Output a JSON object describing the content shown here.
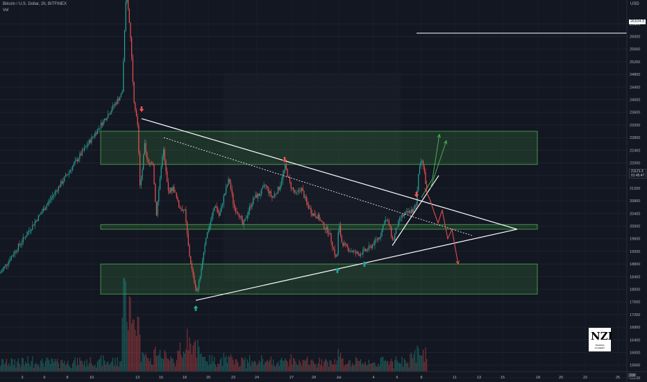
{
  "header": {
    "symbol_line": "Bitcoin / U.S. Dollar, 2h, BITFINEX",
    "volume_label": "Vol",
    "currency": "USD",
    "timezone_badge": "208"
  },
  "badges": {
    "hline_value": "26104.3",
    "price_value": "21121.3",
    "countdown": "01:45:47"
  },
  "logo": {
    "mark": "NZI",
    "caption": "TRADING ACADEMY"
  },
  "colors": {
    "background": "#131722",
    "zone_fill": "rgba(76,175,80,0.18)",
    "zone_border": "#4caf50",
    "up": "#26a69a",
    "down": "#ef5350",
    "vol_up": "rgba(38,166,154,0.45)",
    "vol_down": "rgba(239,83,80,0.45)",
    "trendline": "#ffffff",
    "up_arrow": "#26a69a",
    "down_arrow": "#ef5350",
    "projection_bull": "#4caf50",
    "projection_bear": "#ef5350"
  },
  "chart_data": {
    "type": "candlestick",
    "y_axis": {
      "ticks": [
        15200,
        15600,
        16000,
        16400,
        16800,
        17200,
        17600,
        18000,
        18400,
        18800,
        19200,
        19600,
        20000,
        20400,
        20800,
        21200,
        21600,
        22000,
        22400,
        22800,
        23200,
        23600,
        24000,
        24400,
        24800,
        25200,
        25600,
        26000,
        26400
      ],
      "ylim": [
        15000,
        26700
      ]
    },
    "x_axis": {
      "ticks": [
        "3",
        "6",
        "8",
        "10",
        "13",
        "15",
        "18",
        "20",
        "23",
        "24",
        "27",
        "29",
        "Jul",
        "4",
        "6",
        "8",
        "11",
        "13",
        "15",
        "18",
        "20",
        "22",
        "25"
      ]
    },
    "price_path": [
      {
        "x": 0,
        "y": 18500
      },
      {
        "x": 176,
        "y": 24200
      },
      {
        "x": 182,
        "y": 27500
      },
      {
        "x": 188,
        "y": 26000
      },
      {
        "x": 193,
        "y": 24000
      },
      {
        "x": 198,
        "y": 23300
      },
      {
        "x": 202,
        "y": 21100
      },
      {
        "x": 208,
        "y": 22600
      },
      {
        "x": 214,
        "y": 21900
      },
      {
        "x": 220,
        "y": 22100
      },
      {
        "x": 225,
        "y": 20300
      },
      {
        "x": 230,
        "y": 21400
      },
      {
        "x": 235,
        "y": 22500
      },
      {
        "x": 242,
        "y": 21100
      },
      {
        "x": 250,
        "y": 21200
      },
      {
        "x": 258,
        "y": 20600
      },
      {
        "x": 266,
        "y": 20500
      },
      {
        "x": 272,
        "y": 19200
      },
      {
        "x": 278,
        "y": 18400
      },
      {
        "x": 284,
        "y": 17900
      },
      {
        "x": 290,
        "y": 18700
      },
      {
        "x": 296,
        "y": 19600
      },
      {
        "x": 303,
        "y": 20100
      },
      {
        "x": 310,
        "y": 20700
      },
      {
        "x": 316,
        "y": 20300
      },
      {
        "x": 322,
        "y": 20900
      },
      {
        "x": 330,
        "y": 21500
      },
      {
        "x": 337,
        "y": 20600
      },
      {
        "x": 344,
        "y": 20400
      },
      {
        "x": 350,
        "y": 20000
      },
      {
        "x": 358,
        "y": 20500
      },
      {
        "x": 366,
        "y": 20900
      },
      {
        "x": 374,
        "y": 21000
      },
      {
        "x": 382,
        "y": 21300
      },
      {
        "x": 392,
        "y": 20900
      },
      {
        "x": 402,
        "y": 21200
      },
      {
        "x": 411,
        "y": 21900
      },
      {
        "x": 418,
        "y": 21300
      },
      {
        "x": 426,
        "y": 21000
      },
      {
        "x": 434,
        "y": 21200
      },
      {
        "x": 442,
        "y": 20700
      },
      {
        "x": 450,
        "y": 20400
      },
      {
        "x": 458,
        "y": 20300
      },
      {
        "x": 466,
        "y": 20000
      },
      {
        "x": 474,
        "y": 19800
      },
      {
        "x": 480,
        "y": 19300
      },
      {
        "x": 485,
        "y": 18900
      },
      {
        "x": 488,
        "y": 20100
      },
      {
        "x": 492,
        "y": 19500
      },
      {
        "x": 500,
        "y": 19300
      },
      {
        "x": 508,
        "y": 19200
      },
      {
        "x": 516,
        "y": 19100
      },
      {
        "x": 524,
        "y": 19200
      },
      {
        "x": 532,
        "y": 19300
      },
      {
        "x": 540,
        "y": 19500
      },
      {
        "x": 548,
        "y": 19700
      },
      {
        "x": 554,
        "y": 20200
      },
      {
        "x": 560,
        "y": 20100
      },
      {
        "x": 566,
        "y": 19500
      },
      {
        "x": 572,
        "y": 20000
      },
      {
        "x": 578,
        "y": 20300
      },
      {
        "x": 586,
        "y": 20400
      },
      {
        "x": 594,
        "y": 20500
      },
      {
        "x": 600,
        "y": 20700
      },
      {
        "x": 603,
        "y": 21700
      },
      {
        "x": 607,
        "y": 22200
      },
      {
        "x": 611,
        "y": 21700
      },
      {
        "x": 615,
        "y": 21100
      }
    ],
    "zones": [
      {
        "y_low": 21950,
        "y_high": 23000
      },
      {
        "y_low": 19900,
        "y_high": 20050
      },
      {
        "y_low": 17850,
        "y_high": 18800
      }
    ],
    "horizontal_line": {
      "y": 26104.3
    },
    "trendlines": [
      {
        "from": {
          "x": 204,
          "y": 23400
        },
        "to": {
          "x": 745,
          "y": 19900
        },
        "style": "solid"
      },
      {
        "from": {
          "x": 282,
          "y": 17650
        },
        "to": {
          "x": 745,
          "y": 19900
        },
        "style": "solid"
      },
      {
        "from": {
          "x": 236,
          "y": 22800
        },
        "to": {
          "x": 680,
          "y": 19700
        },
        "style": "dashed"
      },
      {
        "from": {
          "x": 565,
          "y": 19380
        },
        "to": {
          "x": 632,
          "y": 21600
        },
        "style": "solid"
      }
    ],
    "bull_projections": [
      [
        {
          "x": 607,
          "y": 20900
        },
        {
          "x": 623,
          "y": 21500
        },
        {
          "x": 633,
          "y": 22900
        }
      ],
      [
        {
          "x": 620,
          "y": 21200
        },
        {
          "x": 643,
          "y": 22700
        }
      ]
    ],
    "bear_projection": [
      {
        "x": 612,
        "y": 21200
      },
      {
        "x": 620,
        "y": 20800
      },
      {
        "x": 626,
        "y": 20400
      },
      {
        "x": 631,
        "y": 20100
      },
      {
        "x": 637,
        "y": 20500
      },
      {
        "x": 645,
        "y": 19600
      },
      {
        "x": 651,
        "y": 19900
      },
      {
        "x": 660,
        "y": 18800
      }
    ],
    "up_arrows": [
      {
        "x": 282,
        "y": 17400
      },
      {
        "x": 486,
        "y": 18600
      },
      {
        "x": 525,
        "y": 18800
      }
    ],
    "down_arrows": [
      {
        "x": 204,
        "y": 23700
      },
      {
        "x": 410,
        "y": 22100
      },
      {
        "x": 600,
        "y": 21000
      }
    ]
  }
}
